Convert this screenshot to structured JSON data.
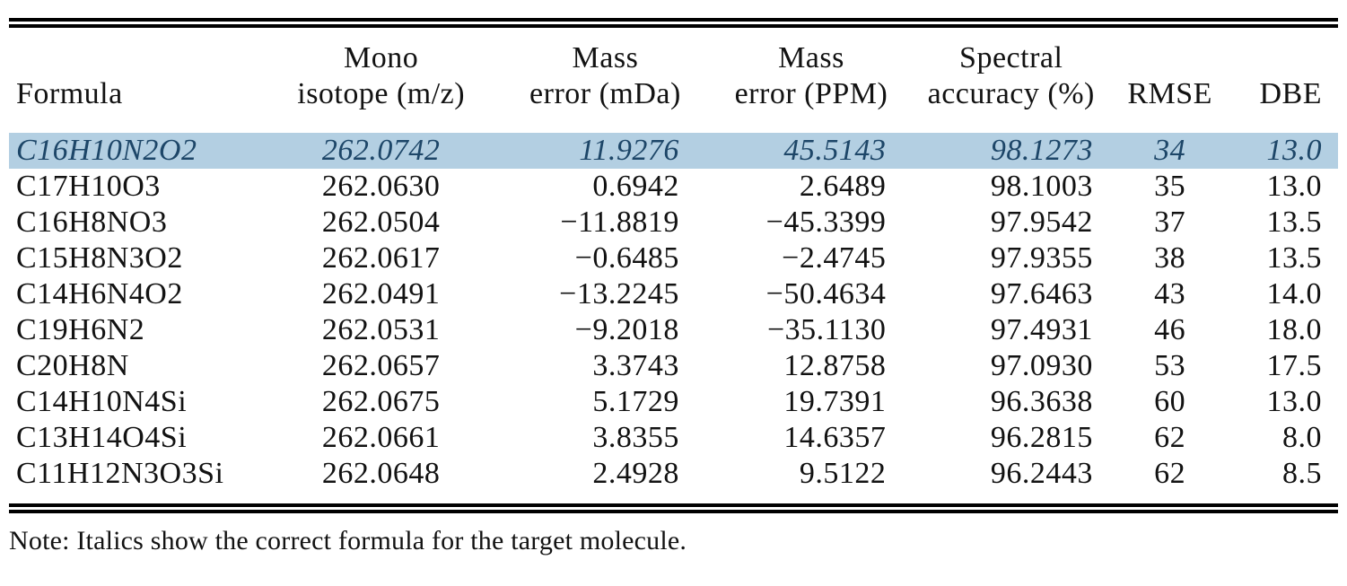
{
  "table": {
    "headers": [
      "Formula",
      "Mono\nisotope (m/z)",
      "Mass\nerror (mDa)",
      "Mass\nerror (PPM)",
      "Spectral\naccuracy (%)",
      "RMSE",
      "DBE"
    ],
    "rows": [
      {
        "highlighted": true,
        "cells": [
          "C16H10N2O2",
          "262.0742",
          "11.9276",
          "45.5143",
          "98.1273",
          "34",
          "13.0"
        ]
      },
      {
        "highlighted": false,
        "cells": [
          "C17H10O3",
          "262.0630",
          "0.6942",
          "2.6489",
          "98.1003",
          "35",
          "13.0"
        ]
      },
      {
        "highlighted": false,
        "cells": [
          "C16H8NO3",
          "262.0504",
          "−11.8819",
          "−45.3399",
          "97.9542",
          "37",
          "13.5"
        ]
      },
      {
        "highlighted": false,
        "cells": [
          "C15H8N3O2",
          "262.0617",
          "−0.6485",
          "−2.4745",
          "97.9355",
          "38",
          "13.5"
        ]
      },
      {
        "highlighted": false,
        "cells": [
          "C14H6N4O2",
          "262.0491",
          "−13.2245",
          "−50.4634",
          "97.6463",
          "43",
          "14.0"
        ]
      },
      {
        "highlighted": false,
        "cells": [
          "C19H6N2",
          "262.0531",
          "−9.2018",
          "−35.1130",
          "97.4931",
          "46",
          "18.0"
        ]
      },
      {
        "highlighted": false,
        "cells": [
          "C20H8N",
          "262.0657",
          "3.3743",
          "12.8758",
          "97.0930",
          "53",
          "17.5"
        ]
      },
      {
        "highlighted": false,
        "cells": [
          "C14H10N4Si",
          "262.0675",
          "5.1729",
          "19.7391",
          "96.3638",
          "60",
          "13.0"
        ]
      },
      {
        "highlighted": false,
        "cells": [
          "C13H14O4Si",
          "262.0661",
          "3.8355",
          "14.6357",
          "96.2815",
          "62",
          "8.0"
        ]
      },
      {
        "highlighted": false,
        "cells": [
          "C11H12N3O3Si",
          "262.0648",
          "2.4928",
          "9.5122",
          "96.2443",
          "62",
          "8.5"
        ]
      }
    ],
    "note": "Note: Italics show the correct formula for the target molecule.",
    "colors": {
      "highlight_bg": "#b3cfe2",
      "highlight_text": "#1d4668",
      "text": "#121212",
      "rule": "#000000"
    }
  }
}
